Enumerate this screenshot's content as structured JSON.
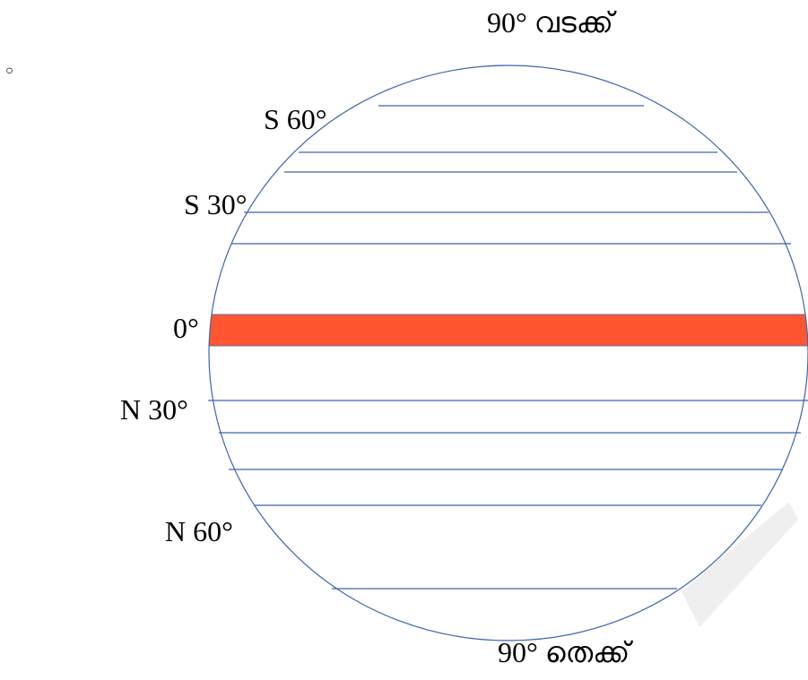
{
  "bullet_mark": "◦",
  "labels": {
    "north_pole": "90° വടക്ക്",
    "south_pole": "90° തെക്ക്",
    "s60": "S 60°",
    "s30": "S 30°",
    "equator": "0°",
    "n30": "N 30°",
    "n60": "N 60°"
  },
  "colors": {
    "outline": "#3a64b3",
    "equator_band": "#ff5630",
    "watermark": "#e9e9e9"
  }
}
